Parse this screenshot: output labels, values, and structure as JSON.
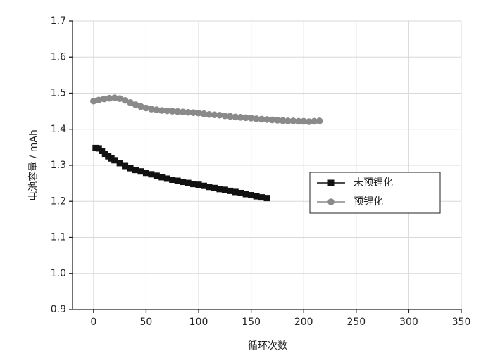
{
  "chart_data": {
    "type": "line",
    "x_label": "循环次数",
    "y_label": "电池容量 / mAh",
    "xlim": [
      -20,
      350
    ],
    "ylim": [
      0.9,
      1.7
    ],
    "xticks": [
      0,
      50,
      100,
      150,
      200,
      250,
      300,
      350
    ],
    "yticks": [
      0.9,
      {
        "value": 1.0,
        "label": "1.0"
      },
      1.1,
      1.2,
      1.3,
      1.4,
      1.5,
      1.6,
      1.7
    ],
    "grid": true,
    "legend": "right",
    "series": [
      {
        "name": "未预锂化",
        "color": "#111111",
        "marker": "square",
        "x": [
          2,
          5,
          8,
          11,
          14,
          17,
          20,
          25,
          30,
          35,
          40,
          45,
          50,
          55,
          60,
          65,
          70,
          75,
          80,
          85,
          90,
          95,
          100,
          105,
          110,
          115,
          120,
          125,
          130,
          135,
          140,
          145,
          150,
          155,
          160,
          165
        ],
        "values": [
          1.348,
          1.347,
          1.34,
          1.332,
          1.325,
          1.319,
          1.314,
          1.306,
          1.298,
          1.292,
          1.287,
          1.283,
          1.279,
          1.275,
          1.271,
          1.267,
          1.263,
          1.26,
          1.257,
          1.254,
          1.251,
          1.248,
          1.246,
          1.243,
          1.24,
          1.237,
          1.234,
          1.232,
          1.229,
          1.226,
          1.223,
          1.22,
          1.217,
          1.214,
          1.211,
          1.209
        ]
      },
      {
        "name": "预锂化",
        "color": "#8a8a8a",
        "marker": "circle",
        "x": [
          0,
          5,
          10,
          15,
          20,
          25,
          30,
          35,
          40,
          45,
          50,
          55,
          60,
          65,
          70,
          75,
          80,
          85,
          90,
          95,
          100,
          105,
          110,
          115,
          120,
          125,
          130,
          135,
          140,
          145,
          150,
          155,
          160,
          165,
          170,
          175,
          180,
          185,
          190,
          195,
          200,
          205,
          210,
          215
        ],
        "values": [
          1.478,
          1.481,
          1.484,
          1.486,
          1.487,
          1.485,
          1.48,
          1.474,
          1.468,
          1.463,
          1.459,
          1.456,
          1.454,
          1.452,
          1.451,
          1.45,
          1.449,
          1.448,
          1.447,
          1.446,
          1.445,
          1.443,
          1.441,
          1.44,
          1.439,
          1.437,
          1.436,
          1.434,
          1.433,
          1.432,
          1.431,
          1.429,
          1.428,
          1.427,
          1.426,
          1.425,
          1.424,
          1.423,
          1.423,
          1.422,
          1.422,
          1.421,
          1.422,
          1.423
        ]
      }
    ]
  }
}
